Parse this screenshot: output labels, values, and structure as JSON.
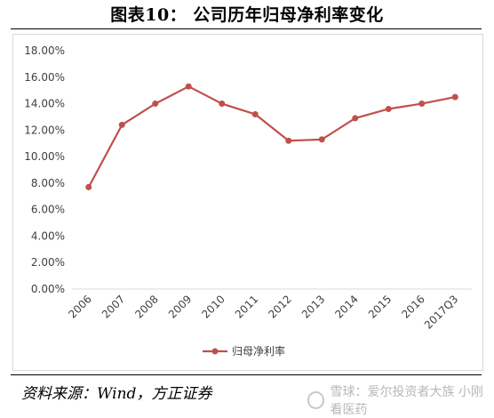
{
  "figure": {
    "title": "图表10：  公司历年归母净利率变化",
    "source": "资料来源：Wind，方正证券",
    "watermark": "雪球：爱尔投资者大族 小刚看医药"
  },
  "chart_data": {
    "type": "line",
    "categories": [
      "2006",
      "2007",
      "2008",
      "2009",
      "2010",
      "2011",
      "2012",
      "2013",
      "2014",
      "2015",
      "2016",
      "2017Q3"
    ],
    "series": [
      {
        "name": "归母净利率",
        "values": [
          7.7,
          12.4,
          14.0,
          15.3,
          14.0,
          13.2,
          11.2,
          11.3,
          12.9,
          13.6,
          14.0,
          14.5
        ]
      }
    ],
    "y_ticks": [
      "0.00%",
      "2.00%",
      "4.00%",
      "6.00%",
      "8.00%",
      "10.00%",
      "12.00%",
      "14.00%",
      "16.00%",
      "18.00%"
    ],
    "ylim": [
      0,
      18
    ],
    "ylabel_unit": "%",
    "grid": false,
    "legend_position": "bottom",
    "line_color": "#c0504d",
    "xlabel": "",
    "ylabel": ""
  }
}
